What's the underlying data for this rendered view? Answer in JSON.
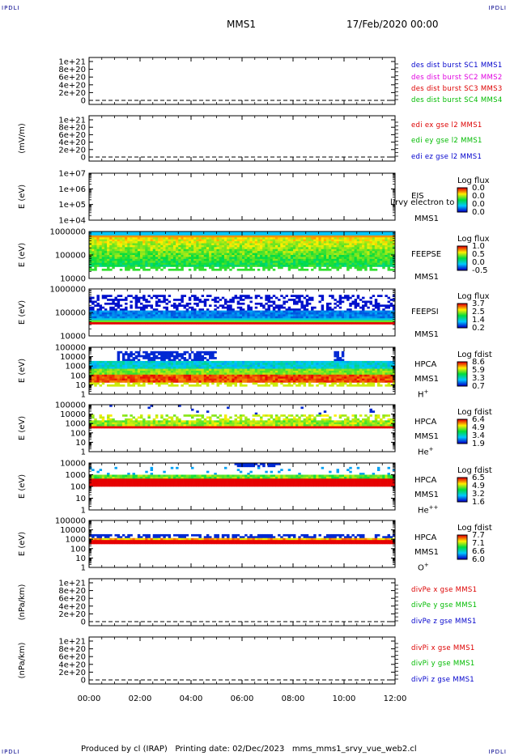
{
  "header": {
    "corner_tl": "IPDLI",
    "corner_tr": "IPDLI",
    "corner_bl": "IPDLI",
    "corner_br": "IPDLI",
    "spacecraft": "MMS1",
    "datetime": "17/Feb/2020 00:00"
  },
  "footer": {
    "text": "Produced by cl (IRAP)   Printing date: 02/Dec/2023   mms_mms1_srvy_vue_web2.cl"
  },
  "colors": {
    "blue": "#0000cc",
    "magenta": "#e000e0",
    "red": "#dd0000",
    "green": "#00bb00"
  },
  "chart_data": [
    {
      "type": "line",
      "panel": "des-dist",
      "ylabel": "",
      "yticks": [
        "1e+21",
        "8e+20",
        "6e+20",
        "4e+20",
        "2e+20",
        "0"
      ],
      "ylim": [
        0,
        1e+21
      ],
      "x": [
        "00:00",
        "12:00"
      ],
      "series": [
        {
          "name": "des dist burst SC1 MMS1",
          "color": "#0000cc",
          "values": [
            0,
            0
          ]
        },
        {
          "name": "des dist burst SC2 MMS2",
          "color": "#e000e0",
          "values": [
            0,
            0
          ]
        },
        {
          "name": "des dist burst SC3 MMS3",
          "color": "#dd0000",
          "values": [
            0,
            0
          ]
        },
        {
          "name": "des dist burst SC4 MMS4",
          "color": "#00bb00",
          "values": [
            0,
            0
          ]
        }
      ]
    },
    {
      "type": "line",
      "panel": "edi-e",
      "ylabel": "(mV/m)",
      "yticks": [
        "1e+21",
        "8e+20",
        "6e+20",
        "4e+20",
        "2e+20",
        "0"
      ],
      "ylim": [
        0,
        1e+21
      ],
      "x": [
        "00:00",
        "12:00"
      ],
      "series": [
        {
          "name": "edi ex gse l2 MMS1",
          "color": "#dd0000",
          "values": [
            0,
            0
          ]
        },
        {
          "name": "edi ey gse l2 MMS1",
          "color": "#00bb00",
          "values": [
            0,
            0
          ]
        },
        {
          "name": "edi ez gse l2 MMS1",
          "color": "#0000cc",
          "values": [
            0,
            0
          ]
        }
      ]
    },
    {
      "type": "heatmap",
      "panel": "eis",
      "ylabel": "E (eV)",
      "yticks": [
        "1e+07",
        "1e+06",
        "1e+05",
        "1e+04"
      ],
      "inst": [
        "EIS",
        "MMS1"
      ],
      "overlay_text": "l/rvy electron to",
      "cbar_title": "Log flux",
      "cbar_values": [
        "0.0",
        "0.0",
        "0.0",
        "0.0"
      ],
      "pattern": "empty"
    },
    {
      "type": "heatmap",
      "panel": "feepse",
      "ylabel": "E (eV)",
      "yticks": [
        "1000000",
        "100000",
        "10000"
      ],
      "inst": [
        "FEEPSE",
        "MMS1"
      ],
      "cbar_title": "Log flux",
      "cbar_values": [
        "1.0",
        "0.5",
        "0.0",
        "-0.5"
      ],
      "pattern": "feepse"
    },
    {
      "type": "heatmap",
      "panel": "feepsi",
      "ylabel": "E (eV)",
      "yticks": [
        "1000000",
        "100000",
        "10000"
      ],
      "inst": [
        "FEEPSI",
        "MMS1"
      ],
      "cbar_title": "Log flux",
      "cbar_values": [
        "3.7",
        "2.5",
        "1.4",
        "0.2"
      ],
      "pattern": "feepsi"
    },
    {
      "type": "heatmap",
      "panel": "hpca-h",
      "ylabel": "E (eV)",
      "yticks": [
        "100000",
        "10000",
        "1000",
        "100",
        "10",
        "1"
      ],
      "inst": [
        "HPCA",
        "MMS1"
      ],
      "species": "H",
      "species_sup": "+",
      "cbar_title": "Log fdist",
      "cbar_values": [
        "8.6",
        "5.9",
        "3.3",
        "0.7"
      ],
      "pattern": "hplus"
    },
    {
      "type": "heatmap",
      "panel": "hpca-he",
      "ylabel": "E (eV)",
      "yticks": [
        "100000",
        "10000",
        "1000",
        "100",
        "10",
        "1"
      ],
      "inst": [
        "HPCA",
        "MMS1"
      ],
      "species": "He",
      "species_sup": "+",
      "cbar_title": "Log fdist",
      "cbar_values": [
        "6.4",
        "4.9",
        "3.4",
        "1.9"
      ],
      "pattern": "heplus"
    },
    {
      "type": "heatmap",
      "panel": "hpca-hepp",
      "ylabel": "E (eV)",
      "yticks": [
        "10000",
        "1000",
        "100",
        "10",
        "1"
      ],
      "inst": [
        "HPCA",
        "MMS1"
      ],
      "species": "He",
      "species_sup": "++",
      "cbar_title": "Log fdist",
      "cbar_values": [
        "6.5",
        "4.9",
        "3.2",
        "1.6"
      ],
      "pattern": "hepp"
    },
    {
      "type": "heatmap",
      "panel": "hpca-o",
      "ylabel": "E (eV)",
      "yticks": [
        "100000",
        "10000",
        "1000",
        "100",
        "10",
        "1"
      ],
      "inst": [
        "HPCA",
        "MMS1"
      ],
      "species": "O",
      "species_sup": "+",
      "cbar_title": "Log fdist",
      "cbar_values": [
        "7.7",
        "7.1",
        "6.6",
        "6.0"
      ],
      "pattern": "oplus"
    },
    {
      "type": "line",
      "panel": "divpe",
      "ylabel": "(nPa/km)",
      "yticks": [
        "1e+21",
        "8e+20",
        "6e+20",
        "4e+20",
        "2e+20",
        "0"
      ],
      "ylim": [
        0,
        1e+21
      ],
      "x": [
        "00:00",
        "12:00"
      ],
      "series": [
        {
          "name": "divPe x gse MMS1",
          "color": "#dd0000",
          "values": [
            0,
            0
          ]
        },
        {
          "name": "divPe y gse MMS1",
          "color": "#00bb00",
          "values": [
            0,
            0
          ]
        },
        {
          "name": "divPe z gse MMS1",
          "color": "#0000cc",
          "values": [
            0,
            0
          ]
        }
      ]
    },
    {
      "type": "line",
      "panel": "divpi",
      "ylabel": "(nPa/km)",
      "yticks": [
        "1e+21",
        "8e+20",
        "6e+20",
        "4e+20",
        "2e+20",
        "0"
      ],
      "ylim": [
        0,
        1e+21
      ],
      "x": [
        "00:00",
        "12:00"
      ],
      "series": [
        {
          "name": "divPi x gse MMS1",
          "color": "#dd0000",
          "values": [
            0,
            0
          ]
        },
        {
          "name": "divPi y gse MMS1",
          "color": "#00bb00",
          "values": [
            0,
            0
          ]
        },
        {
          "name": "divPi z gse MMS1",
          "color": "#0000cc",
          "values": [
            0,
            0
          ]
        }
      ]
    }
  ],
  "xaxis": {
    "ticks": [
      "00:00",
      "02:00",
      "04:00",
      "06:00",
      "08:00",
      "10:00",
      "12:00"
    ]
  }
}
